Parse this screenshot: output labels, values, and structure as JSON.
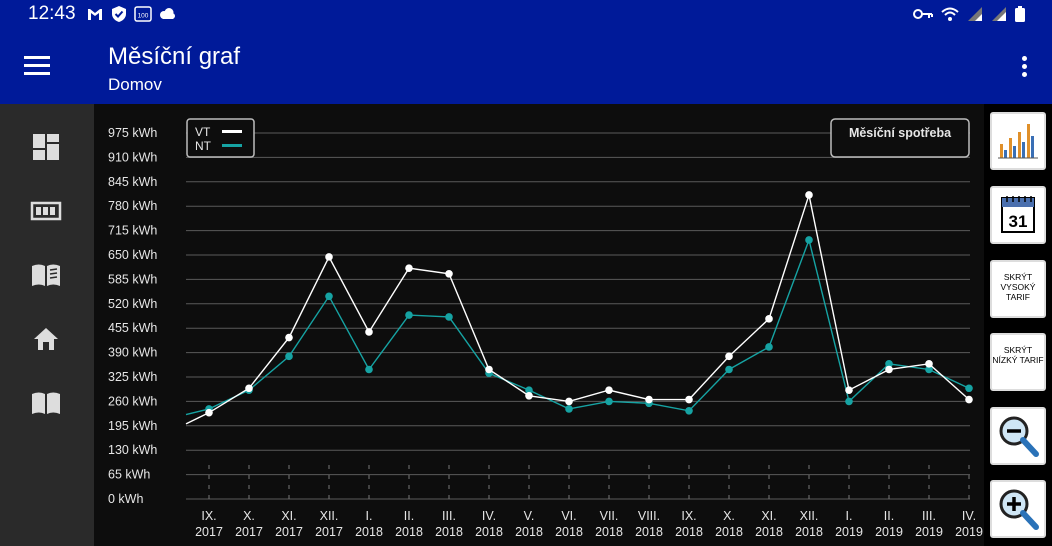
{
  "status": {
    "time": "12:43",
    "battery_text": "100"
  },
  "app_bar": {
    "title": "Měsíční graf",
    "subtitle": "Domov"
  },
  "nav": {
    "items": [
      "dashboard-icon",
      "meter-icon",
      "book-icon",
      "home-icon",
      "manual-icon"
    ]
  },
  "right_panel": {
    "chart_type_icon": "bar-chart-icon",
    "calendar_icon": "calendar-icon",
    "calendar_day": "31",
    "hide_high_label": "SKRÝT VYSOKÝ TARIF",
    "hide_low_label": "SKRÝT NÍZKÝ TARIF",
    "zoom_out_icon": "zoom-out-icon",
    "zoom_in_icon": "zoom-in-icon"
  },
  "chart_title_button": "Měsíční spotřeba",
  "chart_data": {
    "type": "line",
    "unit": "kWh",
    "ylim": [
      0,
      975
    ],
    "yticks": [
      "0 kWh",
      "65 kWh",
      "130 kWh",
      "195 kWh",
      "260 kWh",
      "325 kWh",
      "390 kWh",
      "455 kWh",
      "520 kWh",
      "585 kWh",
      "650 kWh",
      "715 kWh",
      "780 kWh",
      "845 kWh",
      "910 kWh",
      "975 kWh"
    ],
    "categories": [
      {
        "month": "IX.",
        "year": "2017"
      },
      {
        "month": "X.",
        "year": "2017"
      },
      {
        "month": "XI.",
        "year": "2017"
      },
      {
        "month": "XII.",
        "year": "2017"
      },
      {
        "month": "I.",
        "year": "2018"
      },
      {
        "month": "II.",
        "year": "2018"
      },
      {
        "month": "III.",
        "year": "2018"
      },
      {
        "month": "IV.",
        "year": "2018"
      },
      {
        "month": "V.",
        "year": "2018"
      },
      {
        "month": "VI.",
        "year": "2018"
      },
      {
        "month": "VII.",
        "year": "2018"
      },
      {
        "month": "VIII.",
        "year": "2018"
      },
      {
        "month": "IX.",
        "year": "2018"
      },
      {
        "month": "X.",
        "year": "2018"
      },
      {
        "month": "XI.",
        "year": "2018"
      },
      {
        "month": "XII.",
        "year": "2018"
      },
      {
        "month": "I.",
        "year": "2019"
      },
      {
        "month": "II.",
        "year": "2019"
      },
      {
        "month": "III.",
        "year": "2019"
      },
      {
        "month": "IV.",
        "year": "2019"
      }
    ],
    "series": [
      {
        "name": "VT",
        "color": "#ffffff",
        "values": [
          230,
          295,
          430,
          645,
          445,
          615,
          600,
          345,
          275,
          260,
          290,
          265,
          265,
          380,
          480,
          810,
          290,
          345,
          360,
          265
        ]
      },
      {
        "name": "NT",
        "color": "#16a3a3",
        "values": [
          240,
          290,
          380,
          540,
          345,
          490,
          485,
          335,
          290,
          240,
          260,
          255,
          235,
          345,
          405,
          690,
          260,
          360,
          345,
          295
        ]
      }
    ],
    "lead_in": {
      "VT": 200,
      "NT": 225
    },
    "legend_position": "top-left",
    "grid": true
  }
}
